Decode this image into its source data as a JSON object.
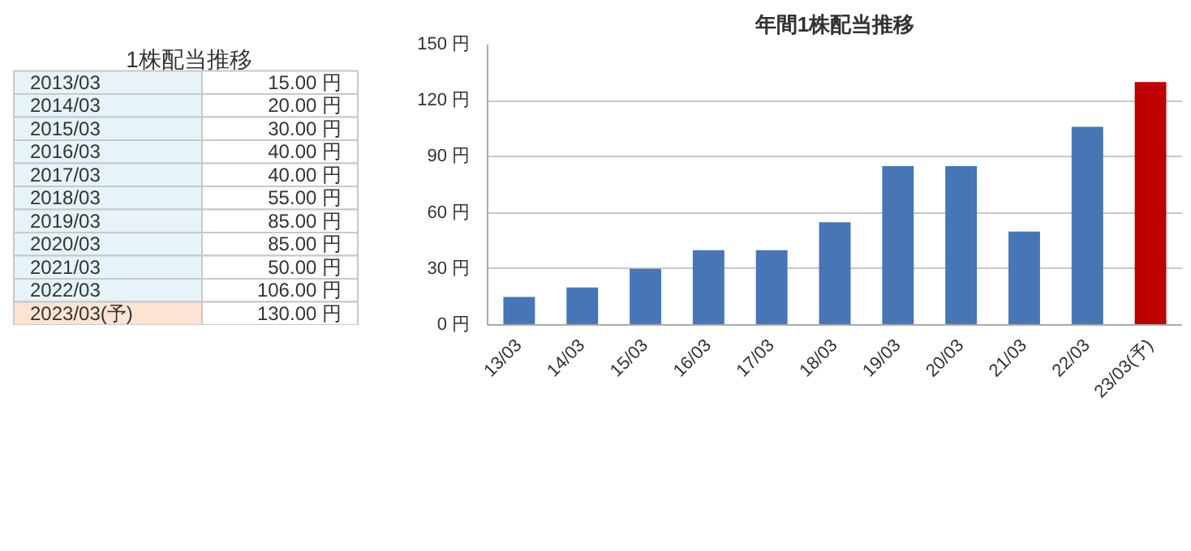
{
  "chart_data": [
    {
      "type": "other",
      "title": "1株配当推移",
      "annotations": [
        "2013/03",
        "15.00 円",
        "2014/03",
        "20.00 円",
        "2015/03",
        "30.00 円",
        "2016/03",
        "40.00 円",
        "2017/03",
        "40.00 円",
        "2018/03",
        "55.00 円",
        "2019/03",
        "85.00 円",
        "2020/03",
        "85.00 円",
        "2021/03",
        "50.00 円",
        "2022/03",
        "106.00 円",
        "2023/03(予)",
        "130.00 円"
      ]
    },
    {
      "type": "bar",
      "title": "年間1株配当推移",
      "categories": [
        "13/03",
        "14/03",
        "15/03",
        "16/03",
        "17/03",
        "18/03",
        "19/03",
        "20/03",
        "21/03",
        "22/03",
        "23/03(予)"
      ],
      "values": [
        15,
        20,
        30,
        40,
        40,
        55,
        85,
        85,
        50,
        106,
        130
      ],
      "colors": [
        "#4676b6",
        "#4676b6",
        "#4676b6",
        "#4676b6",
        "#4676b6",
        "#4676b6",
        "#4676b6",
        "#4676b6",
        "#4676b6",
        "#4676b6",
        "#bf0000"
      ],
      "ylim": [
        0,
        150
      ],
      "yticks": [
        {
          "value": 0,
          "label": "0 円"
        },
        {
          "value": 30,
          "label": "30 円"
        },
        {
          "value": 60,
          "label": "60 円"
        },
        {
          "value": 90,
          "label": "90 円"
        },
        {
          "value": 120,
          "label": "120 円"
        },
        {
          "value": 150,
          "label": "150 円"
        }
      ],
      "grid": "y"
    }
  ]
}
